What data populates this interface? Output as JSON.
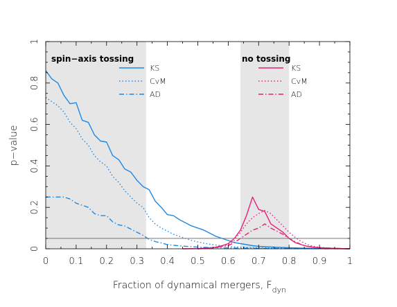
{
  "chart_data": {
    "type": "line",
    "xlabel": "Fraction of dynamical mergers, F",
    "xlabel_sub": "dyn",
    "ylabel": "p−value",
    "xlim": [
      0,
      1
    ],
    "ylim": [
      0,
      1
    ],
    "x_ticks": [
      "0",
      "0.1",
      "0.2",
      "0.3",
      "0.4",
      "0.5",
      "0.6",
      "0.7",
      "0.8",
      "0.9",
      "1"
    ],
    "y_ticks": [
      "0",
      "0.2",
      "0.4",
      "0.6",
      "0.8",
      "1"
    ],
    "grid": false,
    "threshold_line": 0.05,
    "shaded_regions": [
      {
        "label": "spin−axis tossing",
        "x": [
          0,
          0.33
        ]
      },
      {
        "label": "no tossing",
        "x": [
          0.64,
          0.8
        ]
      }
    ],
    "legends": [
      {
        "group": "spin−axis tossing",
        "entries": [
          "KS",
          "CvM",
          "AD"
        ]
      },
      {
        "group": "no tossing",
        "entries": [
          "KS",
          "CvM",
          "AD"
        ]
      }
    ],
    "series": [
      {
        "name": "KS",
        "group": "spin−axis tossing",
        "color": "#1e88e5",
        "dash": "solid",
        "x": [
          0,
          0.02,
          0.04,
          0.06,
          0.08,
          0.1,
          0.12,
          0.14,
          0.16,
          0.18,
          0.2,
          0.22,
          0.24,
          0.26,
          0.28,
          0.3,
          0.32,
          0.34,
          0.36,
          0.38,
          0.4,
          0.42,
          0.44,
          0.46,
          0.48,
          0.5,
          0.52,
          0.54,
          0.56,
          0.58,
          0.6,
          0.62,
          0.64,
          0.66,
          0.68,
          0.7,
          0.75,
          0.8,
          0.85,
          0.9,
          1.0
        ],
        "y": [
          0.86,
          0.82,
          0.8,
          0.74,
          0.7,
          0.705,
          0.62,
          0.61,
          0.55,
          0.52,
          0.515,
          0.45,
          0.43,
          0.385,
          0.37,
          0.33,
          0.3,
          0.285,
          0.23,
          0.2,
          0.165,
          0.16,
          0.14,
          0.125,
          0.11,
          0.1,
          0.09,
          0.075,
          0.06,
          0.05,
          0.04,
          0.03,
          0.025,
          0.02,
          0.015,
          0.012,
          0.008,
          0.005,
          0.003,
          0.002,
          0.0
        ]
      },
      {
        "name": "CvM",
        "group": "spin−axis tossing",
        "color": "#1e88e5",
        "dash": "dotted",
        "x": [
          0,
          0.02,
          0.04,
          0.06,
          0.08,
          0.1,
          0.12,
          0.14,
          0.16,
          0.18,
          0.2,
          0.22,
          0.24,
          0.26,
          0.28,
          0.3,
          0.32,
          0.34,
          0.36,
          0.38,
          0.4,
          0.42,
          0.44,
          0.46,
          0.48,
          0.5,
          0.52,
          0.54,
          0.56,
          0.58,
          0.6,
          0.65,
          0.7,
          0.8,
          0.9,
          1.0
        ],
        "y": [
          0.73,
          0.71,
          0.69,
          0.66,
          0.61,
          0.58,
          0.53,
          0.5,
          0.45,
          0.42,
          0.4,
          0.35,
          0.32,
          0.28,
          0.25,
          0.22,
          0.2,
          0.15,
          0.12,
          0.1,
          0.085,
          0.07,
          0.06,
          0.05,
          0.04,
          0.033,
          0.027,
          0.022,
          0.018,
          0.014,
          0.01,
          0.008,
          0.005,
          0.003,
          0.001,
          0.0
        ]
      },
      {
        "name": "AD",
        "group": "spin−axis tossing",
        "color": "#1e88e5",
        "dash": "dashdot",
        "x": [
          0,
          0.02,
          0.04,
          0.06,
          0.08,
          0.1,
          0.12,
          0.14,
          0.16,
          0.18,
          0.2,
          0.22,
          0.24,
          0.26,
          0.28,
          0.3,
          0.32,
          0.34,
          0.36,
          0.38,
          0.4,
          0.42,
          0.44,
          0.46,
          0.48,
          0.5,
          0.55,
          0.6,
          0.65,
          0.7,
          0.8,
          1.0
        ],
        "y": [
          0.25,
          0.25,
          0.25,
          0.25,
          0.24,
          0.22,
          0.21,
          0.2,
          0.17,
          0.16,
          0.16,
          0.13,
          0.115,
          0.11,
          0.095,
          0.08,
          0.065,
          0.045,
          0.035,
          0.028,
          0.02,
          0.017,
          0.014,
          0.012,
          0.01,
          0.008,
          0.006,
          0.004,
          0.003,
          0.002,
          0.001,
          0.0
        ]
      },
      {
        "name": "KS",
        "group": "no tossing",
        "color": "#e91e78",
        "dash": "solid",
        "x": [
          0.45,
          0.5,
          0.55,
          0.58,
          0.6,
          0.62,
          0.64,
          0.66,
          0.68,
          0.7,
          0.72,
          0.74,
          0.76,
          0.78,
          0.8,
          0.82,
          0.84,
          0.86,
          0.88,
          0.9,
          0.95,
          1.0
        ],
        "y": [
          0.0,
          0.001,
          0.005,
          0.015,
          0.025,
          0.05,
          0.09,
          0.16,
          0.25,
          0.19,
          0.18,
          0.12,
          0.1,
          0.08,
          0.05,
          0.03,
          0.02,
          0.012,
          0.008,
          0.005,
          0.002,
          0.0
        ]
      },
      {
        "name": "CvM",
        "group": "no tossing",
        "color": "#e91e78",
        "dash": "dotted",
        "x": [
          0.5,
          0.55,
          0.6,
          0.62,
          0.64,
          0.66,
          0.68,
          0.7,
          0.72,
          0.74,
          0.76,
          0.78,
          0.8,
          0.82,
          0.84,
          0.86,
          0.88,
          0.9,
          0.95,
          1.0
        ],
        "y": [
          0.0,
          0.005,
          0.02,
          0.04,
          0.08,
          0.12,
          0.15,
          0.17,
          0.185,
          0.17,
          0.14,
          0.11,
          0.08,
          0.055,
          0.035,
          0.02,
          0.012,
          0.007,
          0.002,
          0.0
        ]
      },
      {
        "name": "AD",
        "group": "no tossing",
        "color": "#e91e78",
        "dash": "dashdot",
        "x": [
          0.5,
          0.55,
          0.6,
          0.62,
          0.64,
          0.66,
          0.68,
          0.7,
          0.72,
          0.74,
          0.76,
          0.78,
          0.8,
          0.82,
          0.84,
          0.86,
          0.9,
          1.0
        ],
        "y": [
          0.0,
          0.005,
          0.015,
          0.03,
          0.05,
          0.07,
          0.09,
          0.1,
          0.12,
          0.1,
          0.085,
          0.07,
          0.05,
          0.035,
          0.02,
          0.012,
          0.005,
          0.0
        ]
      }
    ]
  }
}
